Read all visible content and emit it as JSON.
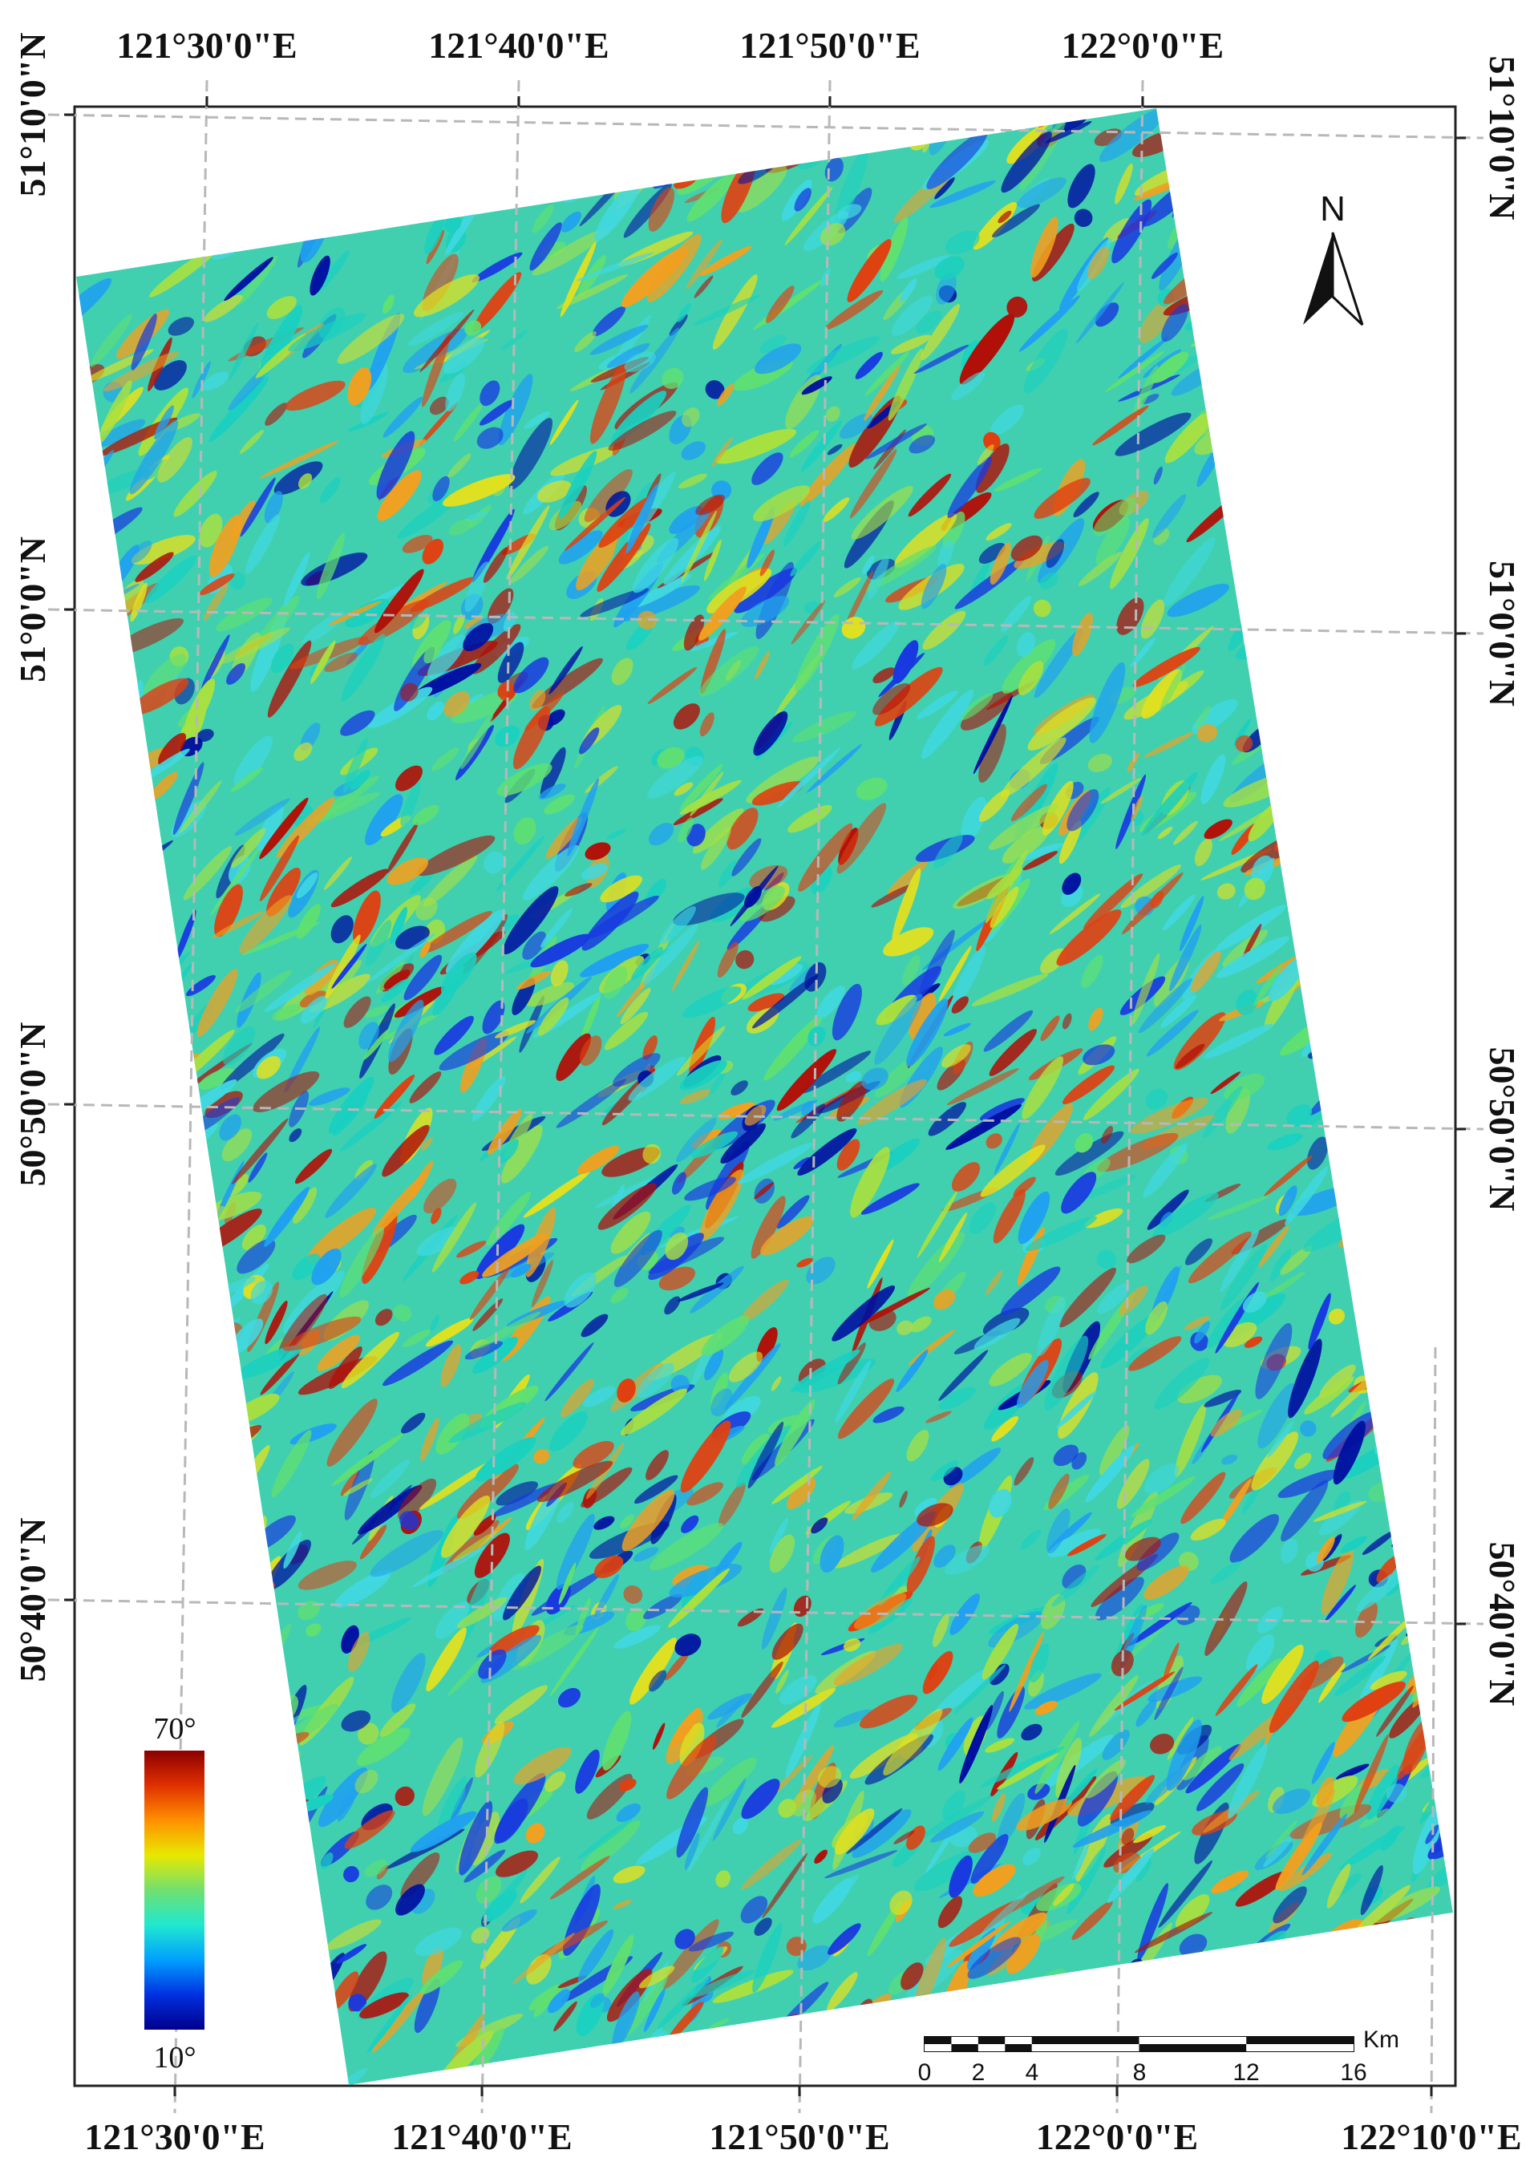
{
  "top_lon_labels": [
    "121°30'0\"E",
    "121°40'0\"E",
    "121°50'0\"E",
    "122°0'0\"E"
  ],
  "bottom_lon_labels": [
    "121°30'0\"E",
    "121°40'0\"E",
    "121°50'0\"E",
    "122°0'0\"E",
    "122°10'0\"E"
  ],
  "left_lat_labels": [
    "51°10'0\"N",
    "51°0'0\"N",
    "50°50'0\"N",
    "50°40'0\"N"
  ],
  "right_lat_labels": [
    "51°10'0\"N",
    "51°0'0\"N",
    "50°50'0\"N",
    "50°40'0\"N"
  ],
  "north_arrow": {
    "label": "N",
    "icon": "north-arrow-icon"
  },
  "legend": {
    "max_label": "70°",
    "min_label": "10°",
    "colors": [
      "#8b0000",
      "#e03000",
      "#ff9000",
      "#e8e800",
      "#70e070",
      "#20e8d0",
      "#00a0ff",
      "#0030e0",
      "#00008b"
    ]
  },
  "scale_bar": {
    "unit": "Km",
    "ticks": [
      "0",
      "2",
      "4",
      "8",
      "12",
      "16"
    ]
  },
  "raster_palette": [
    "#1ad0c0",
    "#40d8e0",
    "#60e070",
    "#a8e040",
    "#e0e020",
    "#f0a020",
    "#e04010",
    "#b01008",
    "#1838e0",
    "#0010a0",
    "#20a0f0"
  ]
}
